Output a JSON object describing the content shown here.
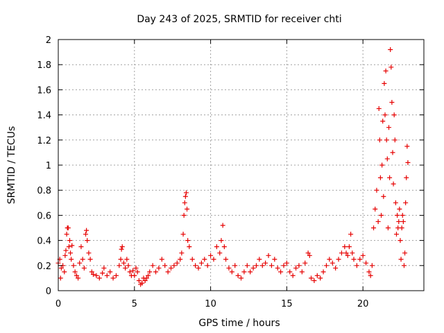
{
  "colors": {
    "series": "#e60000",
    "grid": "#a0a0a0",
    "axis": "#000000"
  },
  "chart_data": {
    "type": "scatter",
    "title": "Day 243 of 2025, SRMTID for receiver chti",
    "xlabel": "GPS time / hours",
    "ylabel": "SRMTID / TECUs",
    "xlim": [
      0,
      24.0
    ],
    "ylim": [
      0,
      2
    ],
    "xticks": [
      0,
      5,
      10,
      15,
      20
    ],
    "xtick_labels": [
      "0",
      "5",
      "10",
      "15",
      "20"
    ],
    "yticks": [
      0,
      0.2,
      0.4,
      0.6,
      0.8,
      1,
      1.2,
      1.4,
      1.6,
      1.8,
      2
    ],
    "ytick_labels": [
      "0",
      "0.2",
      "0.4",
      "0.6",
      "0.8",
      "1",
      "1.2",
      "1.4",
      "1.6",
      "1.8",
      "2"
    ],
    "grid": true,
    "marker": "plus",
    "series": [
      {
        "name": "SRMTID",
        "points": [
          [
            0.0,
            0.22
          ],
          [
            0.1,
            0.25
          ],
          [
            0.15,
            0.1
          ],
          [
            0.2,
            0.18
          ],
          [
            0.3,
            0.2
          ],
          [
            0.4,
            0.15
          ],
          [
            0.45,
            0.28
          ],
          [
            0.5,
            0.32
          ],
          [
            0.55,
            0.45
          ],
          [
            0.6,
            0.5
          ],
          [
            0.65,
            0.5
          ],
          [
            0.7,
            0.35
          ],
          [
            0.75,
            0.4
          ],
          [
            0.8,
            0.3
          ],
          [
            0.85,
            0.25
          ],
          [
            0.9,
            0.36
          ],
          [
            1.0,
            0.2
          ],
          [
            1.1,
            0.15
          ],
          [
            1.2,
            0.12
          ],
          [
            1.3,
            0.1
          ],
          [
            1.4,
            0.22
          ],
          [
            1.5,
            0.35
          ],
          [
            1.6,
            0.25
          ],
          [
            1.7,
            0.18
          ],
          [
            1.8,
            0.45
          ],
          [
            1.85,
            0.48
          ],
          [
            1.9,
            0.4
          ],
          [
            2.0,
            0.3
          ],
          [
            2.1,
            0.25
          ],
          [
            2.2,
            0.15
          ],
          [
            2.3,
            0.13
          ],
          [
            2.5,
            0.12
          ],
          [
            2.7,
            0.1
          ],
          [
            2.9,
            0.14
          ],
          [
            3.0,
            0.18
          ],
          [
            3.2,
            0.12
          ],
          [
            3.4,
            0.15
          ],
          [
            3.6,
            0.1
          ],
          [
            3.8,
            0.12
          ],
          [
            4.0,
            0.2
          ],
          [
            4.1,
            0.25
          ],
          [
            4.15,
            0.33
          ],
          [
            4.2,
            0.35
          ],
          [
            4.3,
            0.22
          ],
          [
            4.4,
            0.18
          ],
          [
            4.5,
            0.25
          ],
          [
            4.6,
            0.2
          ],
          [
            4.7,
            0.15
          ],
          [
            4.8,
            0.12
          ],
          [
            4.9,
            0.16
          ],
          [
            5.0,
            0.12
          ],
          [
            5.1,
            0.18
          ],
          [
            5.2,
            0.15
          ],
          [
            5.3,
            0.08
          ],
          [
            5.4,
            0.05
          ],
          [
            5.5,
            0.06
          ],
          [
            5.6,
            0.1
          ],
          [
            5.7,
            0.08
          ],
          [
            5.8,
            0.1
          ],
          [
            5.9,
            0.12
          ],
          [
            6.0,
            0.15
          ],
          [
            6.2,
            0.2
          ],
          [
            6.4,
            0.15
          ],
          [
            6.6,
            0.18
          ],
          [
            6.8,
            0.25
          ],
          [
            7.0,
            0.2
          ],
          [
            7.2,
            0.15
          ],
          [
            7.4,
            0.18
          ],
          [
            7.6,
            0.2
          ],
          [
            7.8,
            0.22
          ],
          [
            8.0,
            0.25
          ],
          [
            8.1,
            0.3
          ],
          [
            8.2,
            0.45
          ],
          [
            8.25,
            0.6
          ],
          [
            8.3,
            0.7
          ],
          [
            8.35,
            0.75
          ],
          [
            8.4,
            0.78
          ],
          [
            8.45,
            0.65
          ],
          [
            8.5,
            0.4
          ],
          [
            8.6,
            0.35
          ],
          [
            8.8,
            0.25
          ],
          [
            9.0,
            0.2
          ],
          [
            9.2,
            0.18
          ],
          [
            9.4,
            0.22
          ],
          [
            9.6,
            0.25
          ],
          [
            9.8,
            0.2
          ],
          [
            10.0,
            0.28
          ],
          [
            10.2,
            0.25
          ],
          [
            10.4,
            0.35
          ],
          [
            10.6,
            0.3
          ],
          [
            10.7,
            0.4
          ],
          [
            10.8,
            0.52
          ],
          [
            10.9,
            0.35
          ],
          [
            11.0,
            0.25
          ],
          [
            11.2,
            0.18
          ],
          [
            11.4,
            0.15
          ],
          [
            11.6,
            0.2
          ],
          [
            11.8,
            0.12
          ],
          [
            12.0,
            0.1
          ],
          [
            12.2,
            0.15
          ],
          [
            12.4,
            0.2
          ],
          [
            12.6,
            0.15
          ],
          [
            12.8,
            0.18
          ],
          [
            13.0,
            0.2
          ],
          [
            13.2,
            0.25
          ],
          [
            13.4,
            0.2
          ],
          [
            13.6,
            0.22
          ],
          [
            13.8,
            0.28
          ],
          [
            14.0,
            0.2
          ],
          [
            14.2,
            0.25
          ],
          [
            14.4,
            0.18
          ],
          [
            14.6,
            0.15
          ],
          [
            14.8,
            0.2
          ],
          [
            15.0,
            0.22
          ],
          [
            15.2,
            0.15
          ],
          [
            15.4,
            0.12
          ],
          [
            15.6,
            0.18
          ],
          [
            15.8,
            0.2
          ],
          [
            16.0,
            0.15
          ],
          [
            16.2,
            0.22
          ],
          [
            16.4,
            0.3
          ],
          [
            16.5,
            0.28
          ],
          [
            16.6,
            0.1
          ],
          [
            16.8,
            0.08
          ],
          [
            17.0,
            0.12
          ],
          [
            17.2,
            0.1
          ],
          [
            17.4,
            0.15
          ],
          [
            17.6,
            0.2
          ],
          [
            17.8,
            0.25
          ],
          [
            18.0,
            0.22
          ],
          [
            18.2,
            0.18
          ],
          [
            18.4,
            0.25
          ],
          [
            18.6,
            0.3
          ],
          [
            18.8,
            0.35
          ],
          [
            18.9,
            0.3
          ],
          [
            19.0,
            0.28
          ],
          [
            19.1,
            0.35
          ],
          [
            19.2,
            0.45
          ],
          [
            19.3,
            0.3
          ],
          [
            19.4,
            0.25
          ],
          [
            19.6,
            0.2
          ],
          [
            19.8,
            0.25
          ],
          [
            20.0,
            0.28
          ],
          [
            20.2,
            0.22
          ],
          [
            20.4,
            0.15
          ],
          [
            20.5,
            0.12
          ],
          [
            20.6,
            0.2
          ],
          [
            20.7,
            0.5
          ],
          [
            20.8,
            0.65
          ],
          [
            20.9,
            0.8
          ],
          [
            21.0,
            0.55
          ],
          [
            21.05,
            1.45
          ],
          [
            21.1,
            1.2
          ],
          [
            21.15,
            0.9
          ],
          [
            21.2,
            0.6
          ],
          [
            21.25,
            1.0
          ],
          [
            21.3,
            1.35
          ],
          [
            21.35,
            0.75
          ],
          [
            21.4,
            1.65
          ],
          [
            21.45,
            1.4
          ],
          [
            21.5,
            1.75
          ],
          [
            21.55,
            1.2
          ],
          [
            21.6,
            1.05
          ],
          [
            21.65,
            0.5
          ],
          [
            21.7,
            1.3
          ],
          [
            21.75,
            0.9
          ],
          [
            21.8,
            1.92
          ],
          [
            21.85,
            1.78
          ],
          [
            21.9,
            1.5
          ],
          [
            21.95,
            1.1
          ],
          [
            22.0,
            0.85
          ],
          [
            22.05,
            1.4
          ],
          [
            22.1,
            1.2
          ],
          [
            22.15,
            0.7
          ],
          [
            22.2,
            0.45
          ],
          [
            22.25,
            0.6
          ],
          [
            22.3,
            0.5
          ],
          [
            22.35,
            0.55
          ],
          [
            22.4,
            0.65
          ],
          [
            22.45,
            0.4
          ],
          [
            22.5,
            0.25
          ],
          [
            22.55,
            0.5
          ],
          [
            22.6,
            0.6
          ],
          [
            22.65,
            0.55
          ],
          [
            22.7,
            0.2
          ],
          [
            22.75,
            0.3
          ],
          [
            22.8,
            0.7
          ],
          [
            22.85,
            0.9
          ],
          [
            22.9,
            1.15
          ],
          [
            22.95,
            1.02
          ]
        ]
      }
    ]
  }
}
